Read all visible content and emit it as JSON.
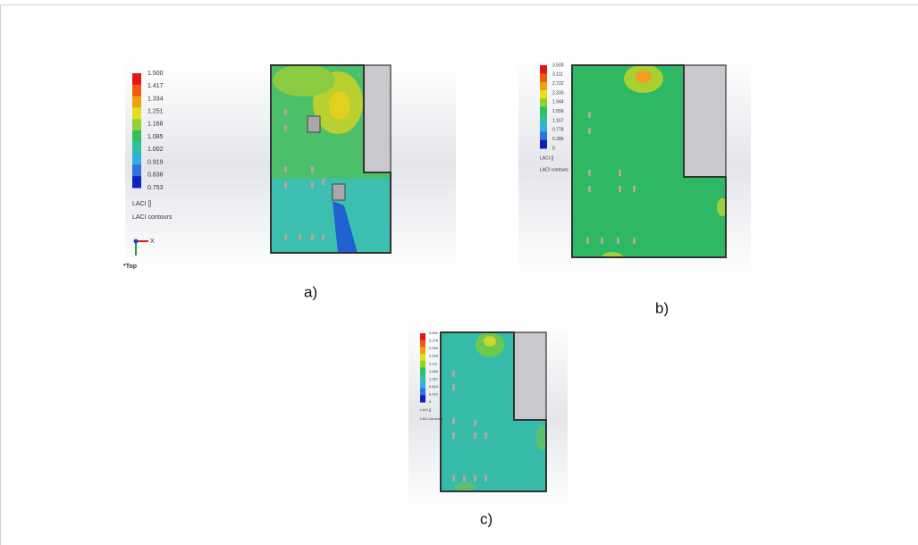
{
  "figures": [
    {
      "label": "a)",
      "legend": {
        "values": [
          "1.500",
          "1.417",
          "1.334",
          "1.251",
          "1.168",
          "1.085",
          "1.002",
          "0.919",
          "0.836",
          "0.753"
        ],
        "quantity": "LACI []",
        "caption": "LACI contours"
      },
      "axis": "X",
      "view": "*Top"
    },
    {
      "label": "b)",
      "legend": {
        "values": [
          "3.500",
          "3.111",
          "2.722",
          "2.333",
          "1.944",
          "1.556",
          "1.167",
          "0.778",
          "0.389",
          "0"
        ],
        "quantity": "LACI []",
        "caption": "LACI contours"
      }
    },
    {
      "label": "c)",
      "legend": {
        "values": [
          "3.800",
          "3.378",
          "2.956",
          "2.533",
          "2.111",
          "1.689",
          "1.267",
          "0.844",
          "0.422",
          "0"
        ],
        "quantity": "LACI []",
        "caption": "LACI contours"
      }
    }
  ]
}
